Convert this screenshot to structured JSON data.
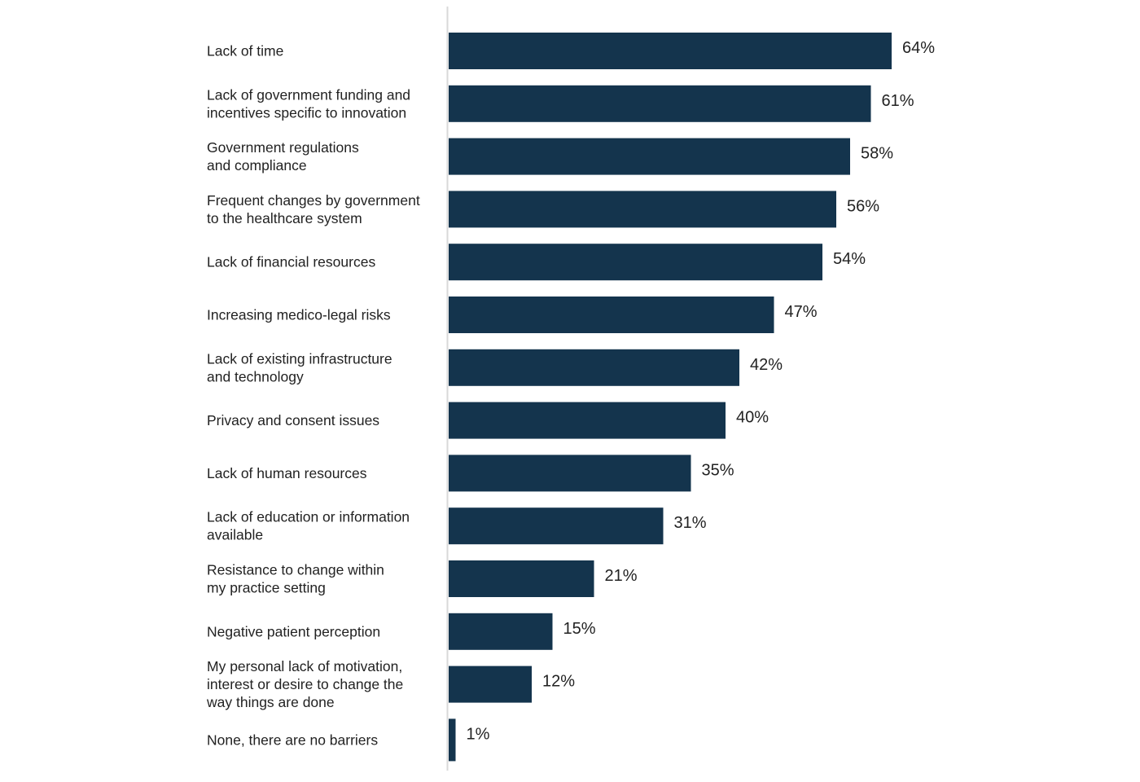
{
  "chart_data": {
    "type": "bar",
    "orientation": "horizontal",
    "title": "",
    "xlabel": "",
    "ylabel": "",
    "xlim": [
      0,
      64
    ],
    "grid": false,
    "bar_color": "#14344d",
    "axis_color": "#d9d9d9",
    "value_suffix": "%",
    "categories": [
      [
        "Lack of time"
      ],
      [
        "Lack of government funding and",
        "incentives specific to innovation"
      ],
      [
        "Government regulations",
        "and compliance"
      ],
      [
        "Frequent changes by government",
        "to the healthcare system"
      ],
      [
        "Lack of financial resources"
      ],
      [
        "Increasing medico-legal risks"
      ],
      [
        "Lack of existing infrastructure",
        "and technology"
      ],
      [
        "Privacy and consent issues"
      ],
      [
        "Lack of human resources"
      ],
      [
        "Lack of education or information",
        "available"
      ],
      [
        "Resistance to change within",
        "my practice setting"
      ],
      [
        "Negative patient perception"
      ],
      [
        "My personal lack of motivation,",
        "interest or desire to change the",
        "way things are done"
      ],
      [
        "None, there are no barriers"
      ]
    ],
    "values": [
      64,
      61,
      58,
      56,
      54,
      47,
      42,
      40,
      35,
      31,
      21,
      15,
      12,
      1
    ]
  }
}
